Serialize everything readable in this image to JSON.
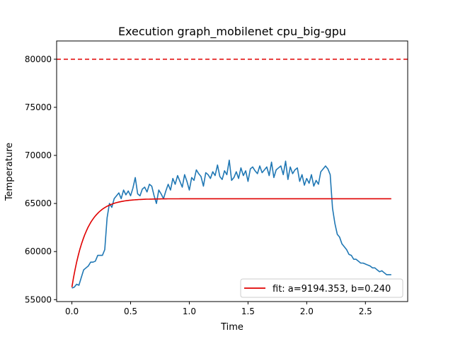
{
  "chart_data": {
    "type": "line",
    "title": "Execution graph_mobilenet cpu_big-gpu",
    "xlabel": "Time",
    "ylabel": "Temperature",
    "xlim": [
      -0.13,
      2.86
    ],
    "ylim": [
      54800,
      81900
    ],
    "x_ticks": [
      0.0,
      0.5,
      1.0,
      1.5,
      2.0,
      2.5
    ],
    "x_tick_labels": [
      "0.0",
      "0.5",
      "1.0",
      "1.5",
      "2.0",
      "2.5"
    ],
    "y_ticks": [
      55000,
      60000,
      65000,
      70000,
      75000,
      80000
    ],
    "y_tick_labels": [
      "55000",
      "60000",
      "65000",
      "70000",
      "75000",
      "80000"
    ],
    "grid": false,
    "legend_position": "bottom-right",
    "threshold": {
      "y": 80000,
      "color": "#e00000",
      "style": "dashed"
    },
    "fit": {
      "a": 9194.353,
      "b": 0.24,
      "y0": 56300,
      "k": 8.2,
      "color": "#e00000",
      "label": "fit: a=9194.353, b=0.240"
    },
    "series": [
      {
        "color": "#1f77b4",
        "x": [
          0.0,
          0.02,
          0.04,
          0.06,
          0.08,
          0.1,
          0.12,
          0.14,
          0.16,
          0.18,
          0.2,
          0.22,
          0.24,
          0.26,
          0.28,
          0.3,
          0.32,
          0.34,
          0.36,
          0.38,
          0.4,
          0.42,
          0.44,
          0.46,
          0.48,
          0.5,
          0.52,
          0.54,
          0.56,
          0.58,
          0.6,
          0.62,
          0.64,
          0.66,
          0.68,
          0.7,
          0.72,
          0.74,
          0.76,
          0.78,
          0.8,
          0.82,
          0.84,
          0.86,
          0.88,
          0.9,
          0.92,
          0.94,
          0.96,
          0.98,
          1.0,
          1.02,
          1.04,
          1.06,
          1.08,
          1.1,
          1.12,
          1.14,
          1.16,
          1.18,
          1.2,
          1.22,
          1.24,
          1.26,
          1.28,
          1.3,
          1.32,
          1.34,
          1.36,
          1.38,
          1.4,
          1.42,
          1.44,
          1.46,
          1.48,
          1.5,
          1.52,
          1.54,
          1.56,
          1.58,
          1.6,
          1.62,
          1.64,
          1.66,
          1.68,
          1.7,
          1.72,
          1.74,
          1.76,
          1.78,
          1.8,
          1.82,
          1.84,
          1.86,
          1.88,
          1.9,
          1.92,
          1.94,
          1.96,
          1.98,
          2.0,
          2.02,
          2.04,
          2.06,
          2.08,
          2.1,
          2.12,
          2.14,
          2.16,
          2.18,
          2.2,
          2.22,
          2.24,
          2.26,
          2.28,
          2.3,
          2.32,
          2.34,
          2.36,
          2.38,
          2.4,
          2.42,
          2.44,
          2.46,
          2.48,
          2.5,
          2.52,
          2.54,
          2.56,
          2.58,
          2.6,
          2.62,
          2.64,
          2.66,
          2.68,
          2.7,
          2.72
        ],
        "y": [
          56200,
          56300,
          56600,
          56500,
          57300,
          58100,
          58300,
          58500,
          58900,
          58900,
          59000,
          59600,
          59600,
          59600,
          60200,
          63500,
          65000,
          64600,
          65500,
          65800,
          66100,
          65500,
          66400,
          65900,
          66300,
          65800,
          66600,
          67700,
          66000,
          65800,
          66500,
          66700,
          66200,
          67000,
          66800,
          65800,
          65000,
          66400,
          66000,
          65500,
          66300,
          67000,
          66400,
          67600,
          67000,
          67900,
          67300,
          66700,
          68000,
          67300,
          66400,
          67700,
          67400,
          68500,
          68100,
          67800,
          66800,
          68200,
          68000,
          67600,
          68300,
          67900,
          69000,
          67800,
          67500,
          68400,
          68000,
          69500,
          67400,
          67700,
          68300,
          67600,
          68700,
          67900,
          68400,
          67300,
          68600,
          68800,
          68400,
          68100,
          68900,
          68200,
          68500,
          68800,
          67900,
          69300,
          67700,
          68500,
          68700,
          68900,
          68000,
          69400,
          67500,
          68800,
          68100,
          68500,
          68700,
          67300,
          68000,
          66900,
          67600,
          67100,
          68000,
          66800,
          67400,
          67000,
          68300,
          68600,
          68900,
          68600,
          68000,
          64500,
          62900,
          61800,
          61500,
          60800,
          60500,
          60200,
          59700,
          59600,
          59200,
          59200,
          59000,
          58800,
          58800,
          58700,
          58600,
          58500,
          58300,
          58300,
          58100,
          57900,
          58000,
          57800,
          57600,
          57600,
          57600
        ]
      }
    ]
  }
}
